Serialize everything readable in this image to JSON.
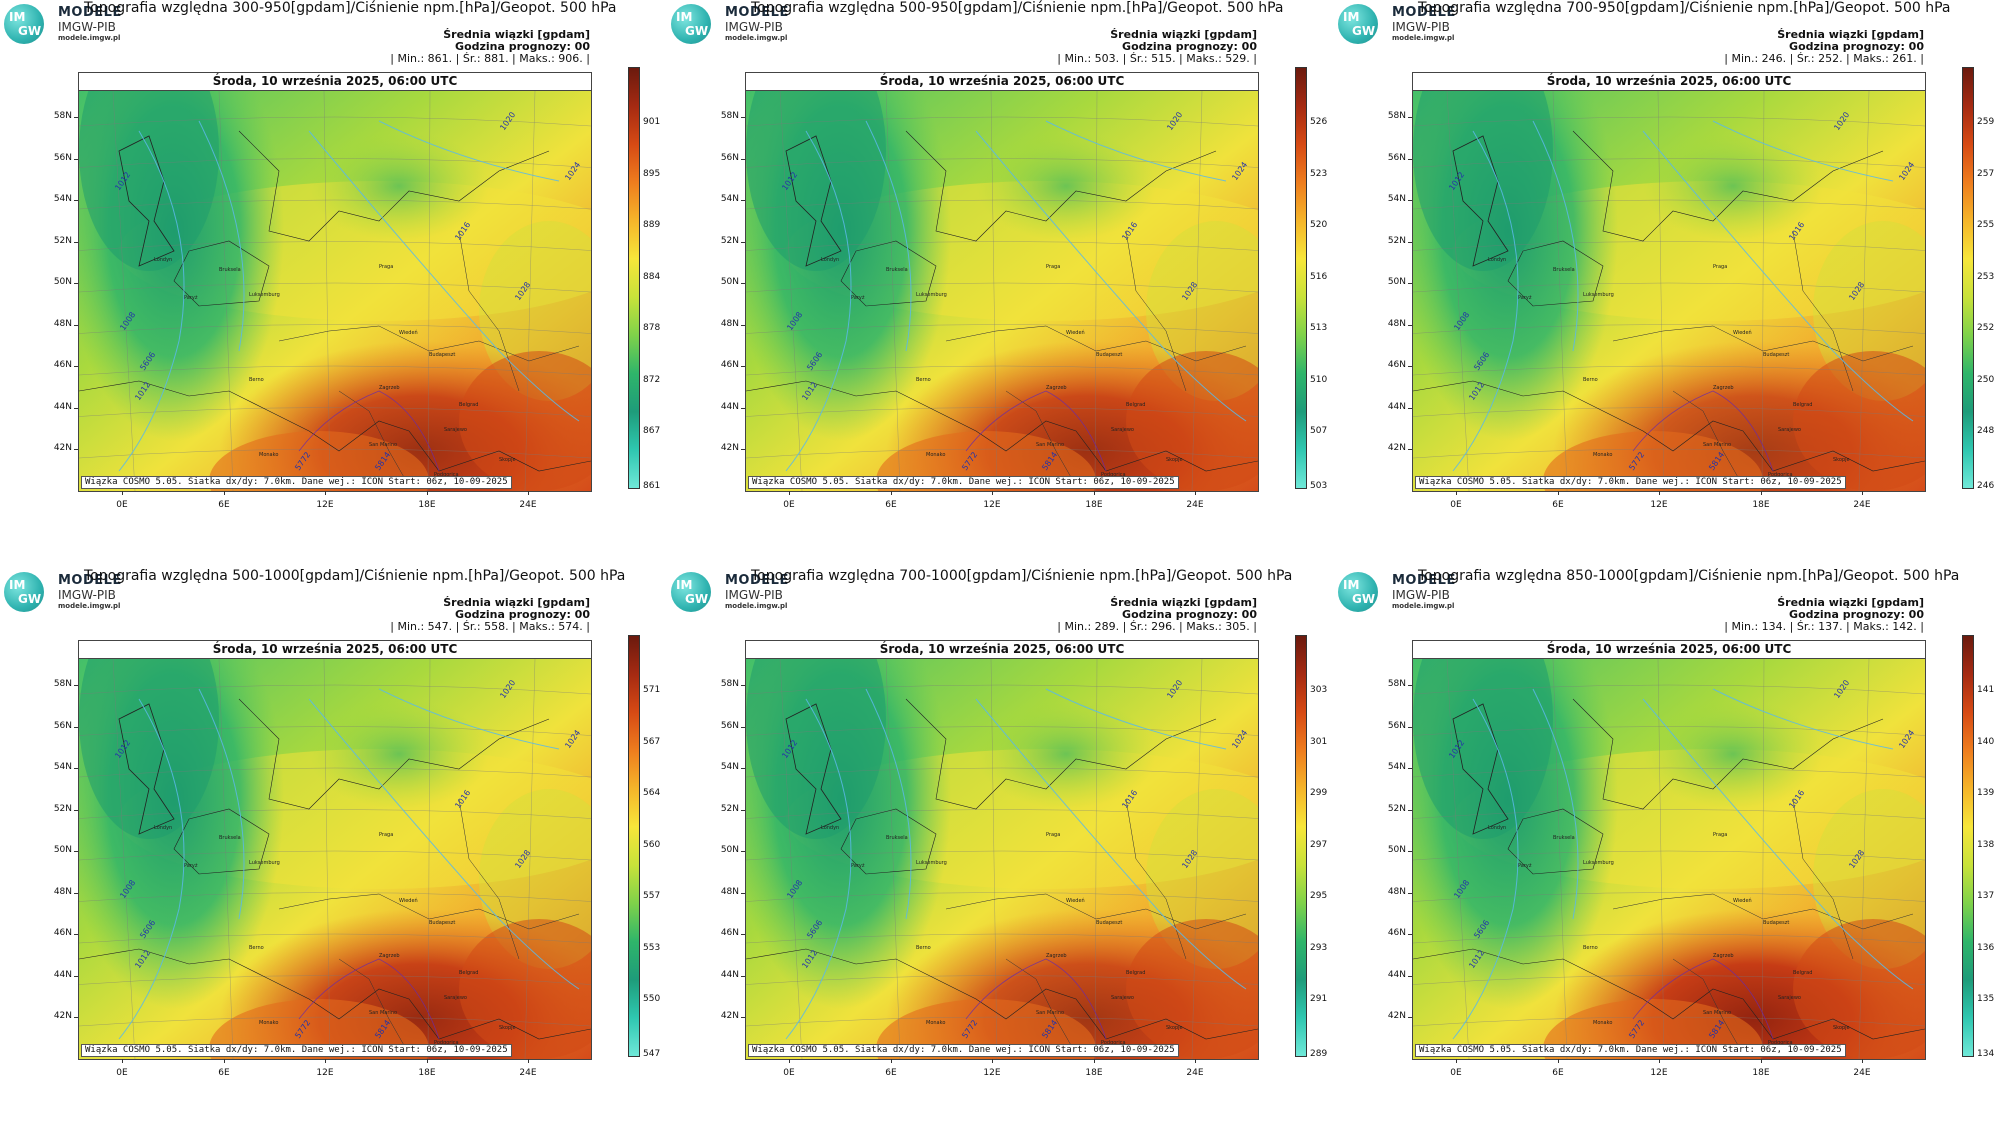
{
  "logo": {
    "circle_top": "IM",
    "circle_bottom": "GW",
    "main": "MODELE",
    "sub": "IMGW-PIB",
    "url": "modele.imgw.pl"
  },
  "common": {
    "info_line1": "Średnia wiązki [gpdam]",
    "info_line2": "Godzina prognozy: 00",
    "date": "Środa, 10 września 2025, 06:00 UTC",
    "footer": "Wiązka COSMO 5.05. Siatka dx/dy: 7.0km. Dane wej.: ICON Start: 06z, 10-09-2025",
    "lat_labels": [
      "58N",
      "56N",
      "54N",
      "52N",
      "50N",
      "48N",
      "46N",
      "44N",
      "42N"
    ],
    "lon_labels": [
      "0E",
      "6E",
      "12E",
      "18E",
      "24E"
    ]
  },
  "panels": [
    {
      "title": "Topografia względna 300-950[gpdam]/Ciśnienie npm.[hPa]/Geopot. 500 hPa",
      "stats": "| Min.:   861. | Śr.:   881. | Maks.:   906. |",
      "cbar": [
        "901",
        "895",
        "889",
        "884",
        "878",
        "872",
        "867",
        "861"
      ]
    },
    {
      "title": "Topografia względna 500-950[gpdam]/Ciśnienie npm.[hPa]/Geopot. 500 hPa",
      "stats": "| Min.:   503. | Śr.:   515. | Maks.:   529. |",
      "cbar": [
        "526",
        "523",
        "520",
        "516",
        "513",
        "510",
        "507",
        "503"
      ]
    },
    {
      "title": "Topografia względna 700-950[gpdam]/Ciśnienie npm.[hPa]/Geopot. 500 hPa",
      "stats": "| Min.:   246. | Śr.:   252. | Maks.:   261. |",
      "cbar": [
        "259",
        "257",
        "255",
        "253",
        "252",
        "250",
        "248",
        "246"
      ]
    },
    {
      "title": "Topografia względna 500-1000[gpdam]/Ciśnienie npm.[hPa]/Geopot. 500 hPa",
      "stats": "| Min.:   547. | Śr.:   558. | Maks.:   574. |",
      "cbar": [
        "571",
        "567",
        "564",
        "560",
        "557",
        "553",
        "550",
        "547"
      ]
    },
    {
      "title": "Topografia względna 700-1000[gpdam]/Ciśnienie npm.[hPa]/Geopot. 500 hPa",
      "stats": "| Min.:   289. | Śr.:   296. | Maks.:   305. |",
      "cbar": [
        "303",
        "301",
        "299",
        "297",
        "295",
        "293",
        "291",
        "289"
      ]
    },
    {
      "title": "Topografia względna 850-1000[gpdam]/Ciśnienie npm.[hPa]/Geopot. 500 hPa",
      "stats": "| Min.:   134. | Śr.:   137. | Maks.:   142. |",
      "cbar": [
        "141",
        "140",
        "139",
        "138",
        "137",
        "136",
        "135",
        "134"
      ]
    }
  ],
  "cities": [
    "Londyn",
    "Paryż",
    "Bruksela",
    "Luksemburg",
    "Praga",
    "Wiedeń",
    "Budapeszt",
    "Berno",
    "Zagrzeb",
    "Belgrad",
    "Sarajewo",
    "Monako",
    "San Marino",
    "Podgorica",
    "Skopje",
    "Andora"
  ],
  "isobars": [
    "1012",
    "1008",
    "1016",
    "1020",
    "1024",
    "1028",
    "5772",
    "5814",
    "5606",
    "1012"
  ]
}
